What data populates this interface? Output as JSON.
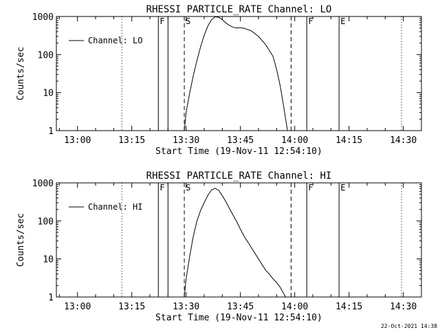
{
  "footer": {
    "date_stamp": "22-Oct-2021 14:38"
  },
  "chart_data": [
    {
      "type": "line",
      "title": "RHESSI PARTICLE_RATE Channel: LO",
      "xlabel": "Start Time (19-Nov-11 12:54:10)",
      "ylabel": "Counts/sec",
      "y_scale": "log",
      "ylim": [
        1,
        1000
      ],
      "y_ticks": [
        1,
        10,
        100,
        1000
      ],
      "y_tick_labels": [
        "1",
        "10",
        "100",
        "1000"
      ],
      "xlim": [
        "12:54:10",
        "14:35:00"
      ],
      "x_ticks": [
        "13:00",
        "13:15",
        "13:30",
        "13:45",
        "14:00",
        "14:15",
        "14:30"
      ],
      "legend": {
        "placement": "top-left",
        "entries": [
          "Channel: LO"
        ]
      },
      "grid": false,
      "markers": [
        {
          "time": "13:12:15",
          "style": "dotted",
          "label": ""
        },
        {
          "time": "13:22:20",
          "style": "solid",
          "label": "F"
        },
        {
          "time": "13:25:00",
          "style": "solid",
          "label": ""
        },
        {
          "time": "13:29:30",
          "style": "dashed",
          "label": "S"
        },
        {
          "time": "13:59:00",
          "style": "dashed",
          "label": ""
        },
        {
          "time": "14:03:20",
          "style": "solid",
          "label": "F"
        },
        {
          "time": "14:12:15",
          "style": "solid",
          "label": "E"
        },
        {
          "time": "14:29:30",
          "style": "dotted",
          "label": ""
        }
      ],
      "series": [
        {
          "name": "Channel: LO",
          "x": [
            "13:29:30",
            "13:30:00",
            "13:31:00",
            "13:32:00",
            "13:33:00",
            "13:34:00",
            "13:35:00",
            "13:36:00",
            "13:37:00",
            "13:38:00",
            "13:39:00",
            "13:40:00",
            "13:41:00",
            "13:42:00",
            "13:43:00",
            "13:44:00",
            "13:45:00",
            "13:46:00",
            "13:48:00",
            "13:50:00",
            "13:52:00",
            "13:54:00",
            "13:55:00",
            "13:56:00",
            "13:57:00",
            "13:57:30",
            "13:58:00"
          ],
          "y": [
            1,
            3,
            10,
            28,
            70,
            160,
            320,
            560,
            820,
            980,
            960,
            820,
            680,
            580,
            520,
            500,
            510,
            490,
            420,
            300,
            180,
            90,
            40,
            15,
            4,
            2,
            1
          ]
        }
      ]
    },
    {
      "type": "line",
      "title": "RHESSI PARTICLE_RATE Channel: HI",
      "xlabel": "Start Time (19-Nov-11 12:54:10)",
      "ylabel": "Counts/sec",
      "y_scale": "log",
      "ylim": [
        1,
        1000
      ],
      "y_ticks": [
        1,
        10,
        100,
        1000
      ],
      "y_tick_labels": [
        "1",
        "10",
        "100",
        "1000"
      ],
      "xlim": [
        "12:54:10",
        "14:35:00"
      ],
      "x_ticks": [
        "13:00",
        "13:15",
        "13:30",
        "13:45",
        "14:00",
        "14:15",
        "14:30"
      ],
      "legend": {
        "placement": "top-left",
        "entries": [
          "Channel: HI"
        ]
      },
      "grid": false,
      "markers": [
        {
          "time": "13:12:15",
          "style": "dotted",
          "label": ""
        },
        {
          "time": "13:22:20",
          "style": "solid",
          "label": "F"
        },
        {
          "time": "13:25:00",
          "style": "solid",
          "label": ""
        },
        {
          "time": "13:29:30",
          "style": "dashed",
          "label": "S"
        },
        {
          "time": "13:59:00",
          "style": "dashed",
          "label": ""
        },
        {
          "time": "14:03:20",
          "style": "solid",
          "label": "F"
        },
        {
          "time": "14:12:15",
          "style": "solid",
          "label": "E"
        },
        {
          "time": "14:29:30",
          "style": "dotted",
          "label": ""
        }
      ],
      "series": [
        {
          "name": "Channel: HI",
          "x": [
            "13:29:30",
            "13:30:00",
            "13:31:00",
            "13:32:00",
            "13:33:00",
            "13:34:00",
            "13:35:00",
            "13:36:00",
            "13:37:00",
            "13:38:00",
            "13:39:00",
            "13:40:00",
            "13:41:00",
            "13:42:00",
            "13:43:00",
            "13:44:00",
            "13:45:00",
            "13:46:00",
            "13:48:00",
            "13:50:00",
            "13:52:00",
            "13:53:00",
            "13:54:00",
            "13:55:00",
            "13:56:00",
            "13:57:00",
            "13:57:30"
          ],
          "y": [
            1,
            3,
            12,
            40,
            100,
            190,
            300,
            470,
            650,
            720,
            640,
            460,
            320,
            210,
            140,
            95,
            60,
            40,
            20,
            10,
            5,
            4,
            3,
            2.4,
            1.8,
            1.2,
            1
          ]
        }
      ]
    }
  ]
}
